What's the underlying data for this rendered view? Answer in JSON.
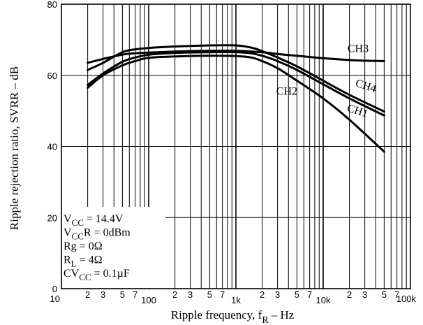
{
  "chart_data": {
    "type": "line",
    "title": "",
    "xlabel": "Ripple frequency, f",
    "xlabel_sub": "R",
    "xlabel_unit": "–  Hz",
    "ylabel": "Ripple rejection ratio, SVRR  –  dB",
    "x_scale": "log",
    "xlim": [
      10,
      100000
    ],
    "ylim": [
      0,
      80
    ],
    "grid": true,
    "y_ticks": [
      {
        "value": 0,
        "label": "0"
      },
      {
        "value": 20,
        "label": "20"
      },
      {
        "value": 40,
        "label": "40"
      },
      {
        "value": 60,
        "label": "60"
      },
      {
        "value": 80,
        "label": "80"
      }
    ],
    "x_tick_labels": [
      {
        "value": 10,
        "label": "10",
        "major": true
      },
      {
        "value": 20,
        "label": "2",
        "major": false
      },
      {
        "value": 30,
        "label": "3",
        "major": false
      },
      {
        "value": 50,
        "label": "5",
        "major": false
      },
      {
        "value": 70,
        "label": "7",
        "major": false
      },
      {
        "value": 100,
        "label": "100",
        "major": true
      },
      {
        "value": 200,
        "label": "2",
        "major": false
      },
      {
        "value": 300,
        "label": "3",
        "major": false
      },
      {
        "value": 500,
        "label": "5",
        "major": false
      },
      {
        "value": 700,
        "label": "7",
        "major": false
      },
      {
        "value": 1000,
        "label": "1k",
        "major": true
      },
      {
        "value": 2000,
        "label": "2",
        "major": false
      },
      {
        "value": 3000,
        "label": "3",
        "major": false
      },
      {
        "value": 5000,
        "label": "5",
        "major": false
      },
      {
        "value": 7000,
        "label": "7",
        "major": false
      },
      {
        "value": 10000,
        "label": "10k",
        "major": true
      },
      {
        "value": 20000,
        "label": "2",
        "major": false
      },
      {
        "value": 30000,
        "label": "3",
        "major": false
      },
      {
        "value": 50000,
        "label": "5",
        "major": false
      },
      {
        "value": 70000,
        "label": "7",
        "major": false
      },
      {
        "value": 100000,
        "label": "100k",
        "major": true
      }
    ],
    "series": [
      {
        "name": "CH3",
        "x": [
          20,
          30,
          50,
          70,
          100,
          200,
          500,
          1000,
          2000,
          3000,
          5000,
          10000,
          20000,
          30000,
          50000
        ],
        "y": [
          63.5,
          64.6,
          65.8,
          66.2,
          66.4,
          66.7,
          66.9,
          66.9,
          66.5,
          66.0,
          65.5,
          64.8,
          64.3,
          64.1,
          64.0
        ]
      },
      {
        "name": "CH4",
        "x": [
          20,
          30,
          50,
          70,
          100,
          200,
          500,
          1000,
          1500,
          2000,
          3000,
          5000,
          10000,
          20000,
          50000
        ],
        "y": [
          61.5,
          63.5,
          66.5,
          67.3,
          67.7,
          68.1,
          68.4,
          68.4,
          67.8,
          66.8,
          65.0,
          62.5,
          58.5,
          54.5,
          49.8
        ]
      },
      {
        "name": "CH1",
        "x": [
          20,
          30,
          50,
          70,
          100,
          200,
          500,
          1000,
          1500,
          2000,
          3000,
          5000,
          10000,
          20000,
          50000
        ],
        "y": [
          57.3,
          60.5,
          63.8,
          65.0,
          65.8,
          66.3,
          66.5,
          66.5,
          66.2,
          65.5,
          64.0,
          61.5,
          57.5,
          53.5,
          48.7
        ]
      },
      {
        "name": "CH2",
        "x": [
          20,
          30,
          50,
          70,
          100,
          200,
          500,
          1000,
          1500,
          2000,
          3000,
          5000,
          10000,
          20000,
          50000
        ],
        "y": [
          56.5,
          60.0,
          62.8,
          64.0,
          64.9,
          65.3,
          65.5,
          65.4,
          65.0,
          64.0,
          62.0,
          58.5,
          53.5,
          47.5,
          38.5
        ]
      }
    ],
    "series_labels": [
      {
        "text": "CH3",
        "x": 19000,
        "y": 66.5,
        "angle": 0
      },
      {
        "text": "CH4",
        "x": 23000,
        "y": 57.0,
        "angle": 18
      },
      {
        "text": "CH1",
        "x": 18500,
        "y": 50.0,
        "angle": 18
      },
      {
        "text": "CH2",
        "x": 2900,
        "y": 54.5,
        "angle": 0
      }
    ],
    "conditions": [
      {
        "main": "V",
        "sub": "CC",
        "rest": " = 14.4V"
      },
      {
        "main": "V",
        "sub": "CC",
        "rest": "R = 0dBm"
      },
      {
        "main": "Rg = 0Ω",
        "sub": "",
        "rest": ""
      },
      {
        "main": "R",
        "sub": "L",
        "rest": " = 4Ω"
      },
      {
        "main": "CV",
        "sub": "CC",
        "rest": " = 0.1µF"
      }
    ]
  }
}
